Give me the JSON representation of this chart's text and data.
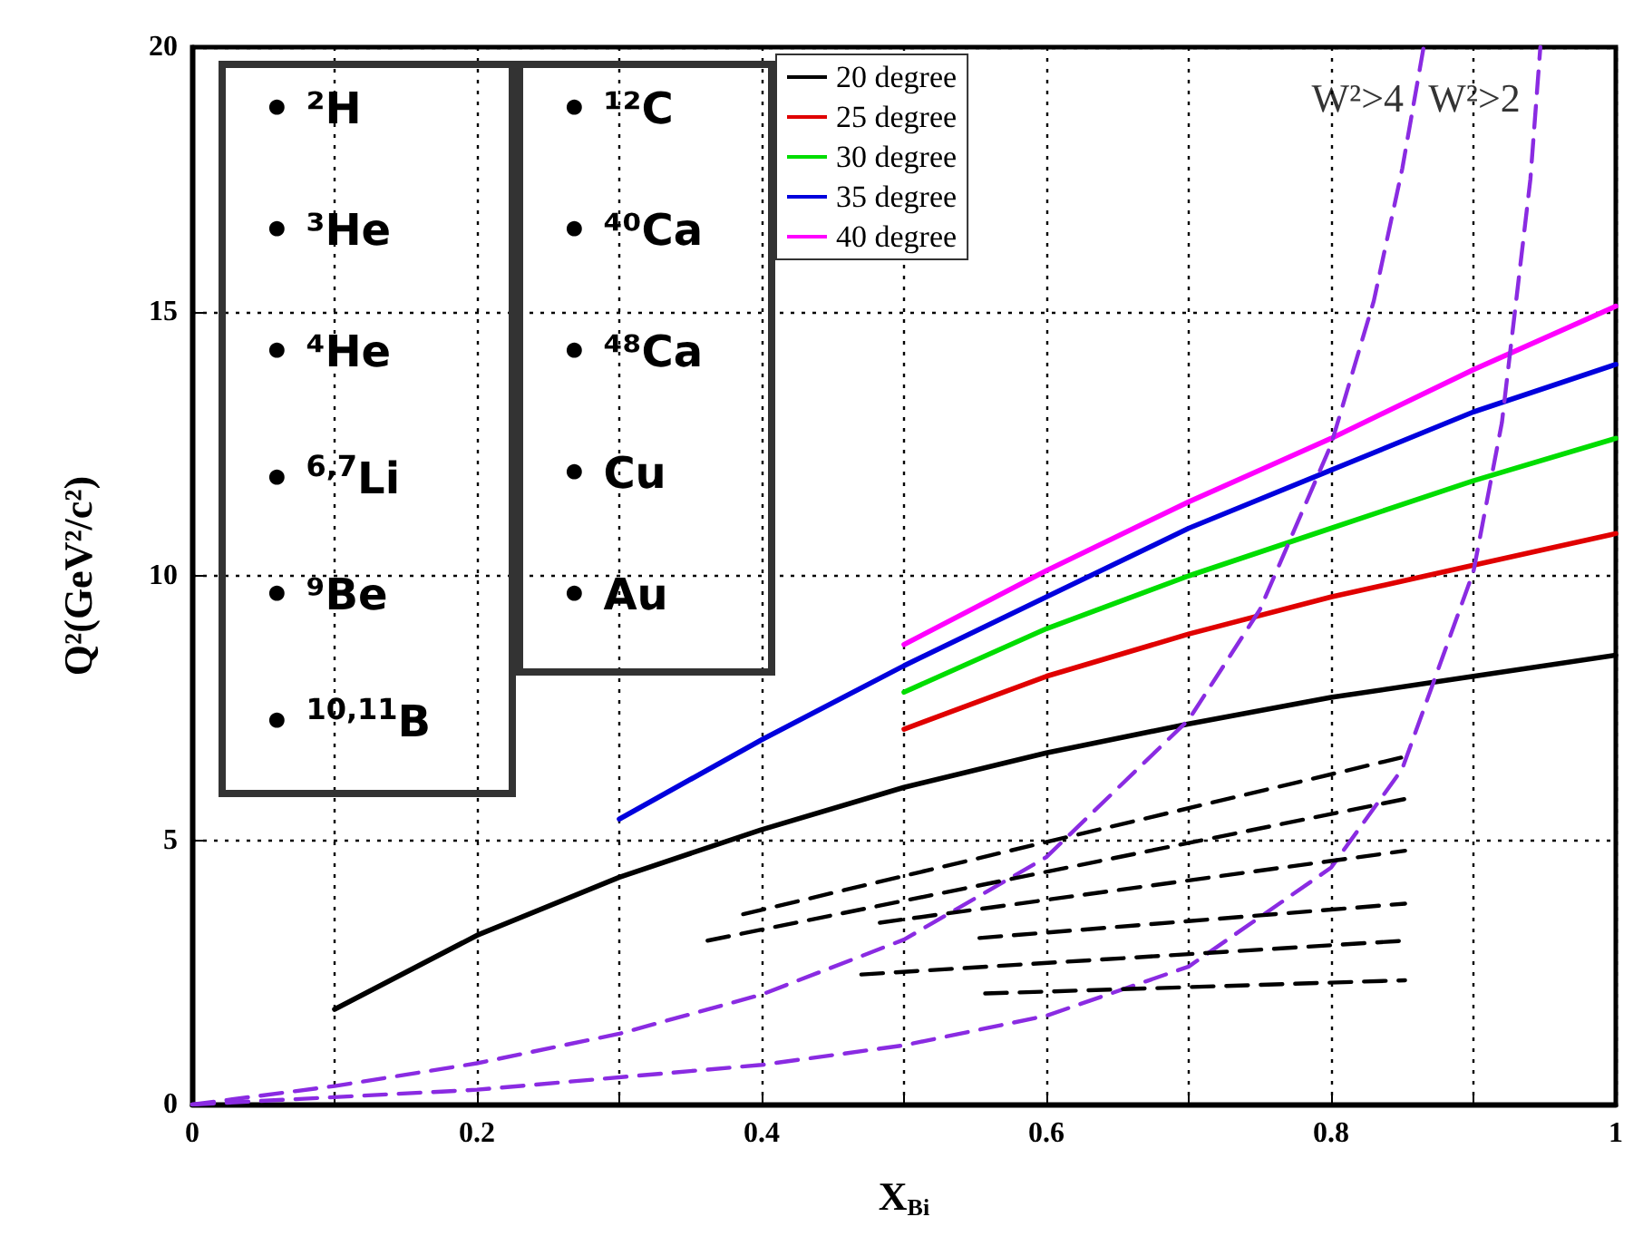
{
  "chart_data": {
    "type": "line",
    "xlabel": "X$_{Bi}$",
    "ylabel": "Q²(GeV²/c²)",
    "xlim": [
      0,
      1
    ],
    "ylim": [
      0,
      20
    ],
    "xticks": [
      0,
      {
        "value": 0.1,
        "label": null
      },
      0.2,
      {
        "value": 0.3,
        "label": null
      },
      0.4,
      {
        "value": 0.5,
        "label": null
      },
      0.6,
      {
        "value": 0.7,
        "label": null
      },
      0.8,
      {
        "value": 0.9,
        "label": null
      },
      1
    ],
    "yticks": [
      0,
      5,
      10,
      15,
      20
    ],
    "grid": true,
    "legend": "top left",
    "marker": "none",
    "series": [
      {
        "name": "20 degree",
        "color": "#000000",
        "line_style": "solid",
        "x": [
          0.1,
          0.2,
          0.3,
          0.4,
          0.5,
          0.6,
          0.7,
          0.8,
          0.9,
          1
        ],
        "values": [
          1.8,
          3.2,
          4.3,
          5.2,
          6.0,
          6.65,
          7.2,
          7.7,
          8.1,
          8.5
        ]
      },
      {
        "name": "25 degree",
        "color": "#e00000",
        "line_style": "solid",
        "x": [
          0.5,
          0.6,
          0.7,
          0.8,
          0.9,
          1
        ],
        "values": [
          7.1,
          8.1,
          8.9,
          9.6,
          10.2,
          10.8
        ]
      },
      {
        "name": "30 degree",
        "color": "#00dd00",
        "line_style": "solid",
        "x": [
          0.5,
          0.6,
          0.7,
          0.8,
          0.9,
          1
        ],
        "values": [
          7.8,
          9.0,
          10.0,
          10.9,
          11.8,
          12.6
        ]
      },
      {
        "name": "35 degree",
        "color": "#0000dd",
        "line_style": "solid",
        "x": [
          0.3,
          0.4,
          0.5,
          0.6,
          0.7,
          0.8,
          0.9,
          1
        ],
        "values": [
          5.4,
          6.9,
          8.3,
          9.6,
          10.9,
          12.0,
          13.1,
          14.0
        ]
      },
      {
        "name": "40 degree",
        "color": "#ff00ff",
        "line_style": "solid",
        "x": [
          0.5,
          0.6,
          0.7,
          0.8,
          0.9,
          1
        ],
        "values": [
          8.7,
          10.1,
          11.4,
          12.6,
          13.9,
          15.1
        ]
      },
      {
        "color": "#8a2be2",
        "line_style": "dashed",
        "x": [
          0,
          0.1,
          0.2,
          0.3,
          0.4,
          0.5,
          0.6,
          0.7,
          0.75,
          0.8,
          0.83,
          0.85,
          0.865
        ],
        "values": [
          0,
          0.35,
          0.78,
          1.34,
          2.08,
          3.12,
          4.68,
          7.28,
          9.36,
          12.48,
          15.2,
          17.7,
          20
        ]
      },
      {
        "color": "#8a2be2",
        "line_style": "dashed",
        "x": [
          0,
          0.2,
          0.4,
          0.5,
          0.6,
          0.7,
          0.8,
          0.85,
          0.9,
          0.92,
          0.94,
          0.947
        ],
        "values": [
          0,
          0.28,
          0.75,
          1.12,
          1.68,
          2.61,
          4.48,
          6.35,
          10.08,
          12.9,
          17.5,
          20
        ]
      },
      {
        "color": "#000000",
        "line_style": "dashed",
        "x": [
          0.387,
          0.852
        ],
        "values": [
          3.6,
          6.58
        ]
      },
      {
        "color": "#000000",
        "line_style": "dashed",
        "x": [
          0.362,
          0.852
        ],
        "values": [
          3.1,
          5.78
        ]
      },
      {
        "color": "#000000",
        "line_style": "dashed",
        "x": [
          0.483,
          0.852
        ],
        "values": [
          3.44,
          4.8
        ]
      },
      {
        "color": "#000000",
        "line_style": "dashed",
        "x": [
          0.553,
          0.852
        ],
        "values": [
          3.15,
          3.8
        ]
      },
      {
        "color": "#000000",
        "line_style": "dashed",
        "x": [
          0.47,
          0.852
        ],
        "values": [
          2.46,
          3.1
        ]
      },
      {
        "color": "#000000",
        "line_style": "dashed",
        "x": [
          0.557,
          0.852
        ],
        "values": [
          2.1,
          2.35
        ]
      }
    ],
    "annotations": [
      "• ²H",
      "• ³He",
      "• ⁴He",
      "• $^{6,7}$Li",
      "• ⁹Be",
      "• $^{10,11}$B",
      "• ¹²C",
      "• ⁴⁰Ca",
      "• ⁴⁸Ca",
      "• Cu",
      "• Au",
      {
        "text": "W²>4",
        "x": 0.865,
        "y": 20
      },
      {
        "text": "W²>2",
        "x": 0.947,
        "y": 20
      }
    ]
  }
}
